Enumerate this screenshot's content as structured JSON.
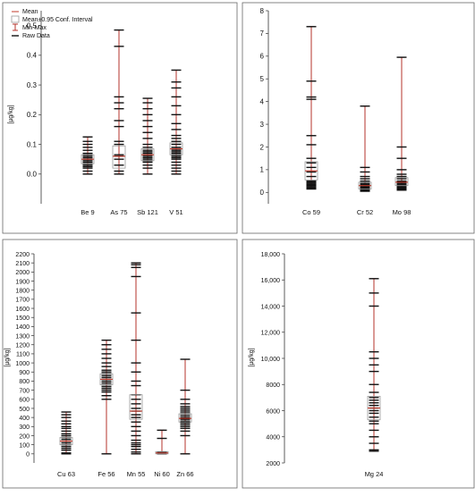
{
  "legend": {
    "mean": "Mean",
    "ci": "Mean±0.95 Conf. Interval",
    "minmax": "Min-Max",
    "raw": "Raw Data"
  },
  "colors": {
    "whisker": "#b5332b",
    "box": "#9a9a9a",
    "mean": "#c0392b",
    "raw": "#111111",
    "frame": "#333333"
  },
  "chart_data": [
    {
      "type": "box",
      "ylabel": "[µg/kg]",
      "ylim": [
        -0.1,
        0.55
      ],
      "yticks": [
        0.0,
        0.1,
        0.2,
        0.3,
        0.4,
        0.5
      ],
      "ytick_labels": [
        "0.0",
        "0.1",
        "0.2",
        "0.3",
        "0.4",
        "0.5"
      ],
      "categories": [
        "Be 9",
        "As 75",
        "Sb 121",
        "V 51"
      ],
      "series": [
        {
          "category": "Be 9",
          "min": 0.0,
          "max": 0.125,
          "mean": 0.05,
          "ci_low": 0.035,
          "ci_high": 0.065,
          "raw": [
            0.0,
            0.01,
            0.02,
            0.025,
            0.03,
            0.035,
            0.04,
            0.045,
            0.05,
            0.055,
            0.06,
            0.065,
            0.07,
            0.08,
            0.09,
            0.1,
            0.11,
            0.125
          ]
        },
        {
          "category": "As 75",
          "min": 0.0,
          "max": 0.485,
          "mean": 0.06,
          "ci_low": 0.02,
          "ci_high": 0.095,
          "raw": [
            0.0,
            0.01,
            0.03,
            0.05,
            0.06,
            0.065,
            0.1,
            0.11,
            0.16,
            0.18,
            0.22,
            0.24,
            0.26,
            0.43,
            0.485
          ]
        },
        {
          "category": "Sb 121",
          "min": 0.0,
          "max": 0.255,
          "mean": 0.065,
          "ci_low": 0.045,
          "ci_high": 0.085,
          "raw": [
            0.0,
            0.02,
            0.03,
            0.04,
            0.045,
            0.05,
            0.055,
            0.06,
            0.065,
            0.07,
            0.075,
            0.08,
            0.09,
            0.1,
            0.12,
            0.14,
            0.16,
            0.18,
            0.2,
            0.22,
            0.24,
            0.255
          ]
        },
        {
          "category": "V 51",
          "min": 0.0,
          "max": 0.35,
          "mean": 0.085,
          "ci_low": 0.065,
          "ci_high": 0.105,
          "raw": [
            0.0,
            0.01,
            0.02,
            0.03,
            0.04,
            0.05,
            0.055,
            0.06,
            0.065,
            0.07,
            0.075,
            0.08,
            0.085,
            0.09,
            0.1,
            0.11,
            0.12,
            0.13,
            0.15,
            0.17,
            0.2,
            0.23,
            0.26,
            0.29,
            0.31,
            0.35
          ]
        }
      ]
    },
    {
      "type": "box",
      "ylabel": "",
      "ylim": [
        -0.5,
        8.0
      ],
      "yticks": [
        0,
        1,
        2,
        3,
        4,
        5,
        6,
        7,
        8
      ],
      "ytick_labels": [
        "0",
        "1",
        "2",
        "3",
        "4",
        "5",
        "6",
        "7",
        "8"
      ],
      "categories": [
        "Co 59",
        "Cr 52",
        "Mo 98"
      ],
      "series": [
        {
          "category": "Co 59",
          "min": 0.15,
          "max": 7.3,
          "mean": 0.95,
          "ci_low": 0.55,
          "ci_high": 1.35,
          "raw": [
            0.15,
            0.2,
            0.25,
            0.3,
            0.35,
            0.4,
            0.45,
            0.5,
            0.7,
            0.9,
            1.1,
            1.3,
            1.5,
            2.1,
            2.5,
            4.1,
            4.2,
            4.9,
            7.3
          ]
        },
        {
          "category": "Cr 52",
          "min": 0.05,
          "max": 3.8,
          "mean": 0.3,
          "ci_low": 0.15,
          "ci_high": 0.45,
          "raw": [
            0.05,
            0.08,
            0.1,
            0.12,
            0.15,
            0.18,
            0.2,
            0.25,
            0.3,
            0.35,
            0.4,
            0.5,
            0.6,
            0.7,
            0.9,
            1.1,
            3.8
          ]
        },
        {
          "category": "Mo 98",
          "min": 0.1,
          "max": 5.95,
          "mean": 0.45,
          "ci_low": 0.3,
          "ci_high": 0.65,
          "raw": [
            0.1,
            0.12,
            0.15,
            0.18,
            0.2,
            0.25,
            0.3,
            0.35,
            0.4,
            0.45,
            0.5,
            0.6,
            0.7,
            0.8,
            1.0,
            1.5,
            2.0,
            5.95
          ]
        }
      ]
    },
    {
      "type": "box",
      "ylabel": "[µg/kg]",
      "ylim": [
        -100,
        2200
      ],
      "yticks": [
        0,
        100,
        200,
        300,
        400,
        500,
        600,
        700,
        800,
        900,
        1000,
        1100,
        1200,
        1300,
        1400,
        1500,
        1600,
        1700,
        1800,
        1900,
        2000,
        2100,
        2200
      ],
      "ytick_labels": [
        "0",
        "100",
        "200",
        "300",
        "400",
        "500",
        "600",
        "700",
        "800",
        "900",
        "1000",
        "1100",
        "1200",
        "1300",
        "1400",
        "1500",
        "1600",
        "1700",
        "1800",
        "1900",
        "2000",
        "2100",
        "2200"
      ],
      "categories": [
        "Cu 63",
        "Fe 56",
        "Mn 55",
        "Ni 60",
        "Zn 66"
      ],
      "series": [
        {
          "category": "Cu 63",
          "min": 0,
          "max": 460,
          "mean": 140,
          "ci_low": 100,
          "ci_high": 180,
          "raw": [
            0,
            10,
            40,
            60,
            80,
            100,
            120,
            140,
            160,
            180,
            200,
            220,
            250,
            280,
            300,
            330,
            360,
            400,
            430,
            460
          ]
        },
        {
          "category": "Fe 56",
          "min": 0,
          "max": 1250,
          "mean": 820,
          "ci_low": 760,
          "ci_high": 880,
          "raw": [
            0,
            600,
            640,
            680,
            700,
            720,
            740,
            760,
            780,
            800,
            820,
            840,
            860,
            880,
            900,
            920,
            960,
            1000,
            1050,
            1100,
            1150,
            1200,
            1250
          ]
        },
        {
          "category": "Mn 55",
          "min": 0,
          "max": 2100,
          "mean": 470,
          "ci_low": 380,
          "ci_high": 650,
          "raw": [
            0,
            20,
            50,
            80,
            100,
            120,
            150,
            200,
            250,
            300,
            350,
            400,
            430,
            470,
            500,
            550,
            600,
            650,
            750,
            800,
            900,
            1000,
            1250,
            1550,
            1950,
            2050,
            2080,
            2100
          ]
        },
        {
          "category": "Ni 60",
          "min": 0,
          "max": 260,
          "mean": 10,
          "ci_low": 0,
          "ci_high": 25,
          "raw": [
            0,
            2,
            5,
            8,
            10,
            15,
            20,
            170,
            260
          ]
        },
        {
          "category": "Zn 66",
          "min": 0,
          "max": 1040,
          "mean": 390,
          "ci_low": 350,
          "ci_high": 440,
          "raw": [
            0,
            200,
            250,
            280,
            300,
            320,
            340,
            360,
            380,
            400,
            420,
            440,
            460,
            480,
            500,
            520,
            550,
            600,
            700,
            1040
          ]
        }
      ]
    },
    {
      "type": "box",
      "ylabel": "[µg/kg]",
      "ylim": [
        2000,
        18000
      ],
      "yticks": [
        2000,
        4000,
        6000,
        8000,
        10000,
        12000,
        14000,
        16000,
        18000
      ],
      "ytick_labels": [
        "2000",
        "4000",
        "6000",
        "8000",
        "10,000",
        "12,000",
        "14,000",
        "16,000",
        "18,000"
      ],
      "categories": [
        "Mg 24"
      ],
      "series": [
        {
          "category": "Mg 24",
          "min": 2900,
          "max": 16100,
          "mean": 6200,
          "ci_low": 5300,
          "ci_high": 7100,
          "raw": [
            2900,
            3000,
            3500,
            4000,
            4500,
            5000,
            5200,
            5500,
            5800,
            6000,
            6200,
            6400,
            6600,
            6800,
            7000,
            7400,
            8000,
            9000,
            9500,
            10000,
            10500,
            14000,
            15000,
            16100
          ]
        }
      ]
    }
  ]
}
